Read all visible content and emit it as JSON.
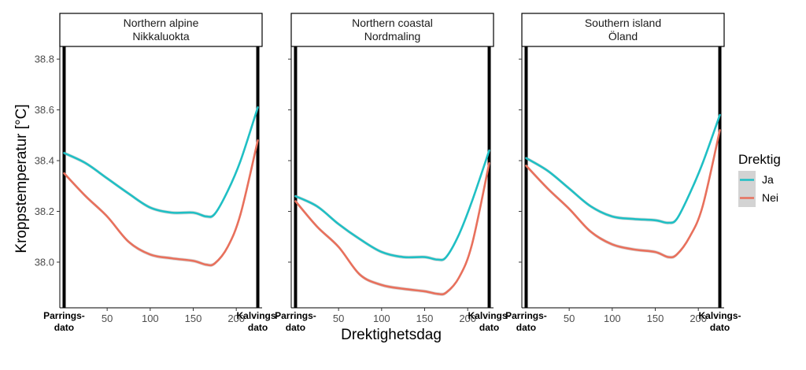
{
  "chart_data": {
    "type": "line",
    "x_axis_title": "Drektighetsdag",
    "y_axis_title": "Kroppstemperatur [°C]",
    "xlim": [
      -5,
      230
    ],
    "ylim": [
      37.82,
      38.85
    ],
    "x_ticks": [
      50,
      100,
      150,
      200
    ],
    "y_ticks": [
      38.0,
      38.2,
      38.4,
      38.6,
      38.8
    ],
    "y_tick_labels": [
      "38.0",
      "38.2",
      "38.4",
      "38.6",
      "38.8"
    ],
    "event_lines": [
      {
        "x": 0,
        "label_line1": "Parrings-",
        "label_line2": "dato"
      },
      {
        "x": 225,
        "label_line1": "Kalvings-",
        "label_line2": "dato"
      }
    ],
    "legend": {
      "title": "Drektig",
      "entries": [
        {
          "name": "Ja",
          "color": "#1fbfc4"
        },
        {
          "name": "Nei",
          "color": "#e8705c"
        }
      ]
    },
    "panels": [
      {
        "title_line1": "Northern alpine",
        "title_line2": "Nikkaluokta",
        "series": [
          {
            "name": "Ja",
            "x": [
              0,
              25,
              50,
              75,
              100,
              125,
              150,
              165,
              175,
              190,
              205,
              225
            ],
            "y": [
              38.43,
              38.39,
              38.33,
              38.27,
              38.215,
              38.195,
              38.195,
              38.18,
              38.19,
              38.28,
              38.4,
              38.61
            ]
          },
          {
            "name": "Nei",
            "x": [
              0,
              25,
              50,
              75,
              100,
              125,
              150,
              165,
              175,
              190,
              205,
              225
            ],
            "y": [
              38.35,
              38.26,
              38.18,
              38.08,
              38.03,
              38.015,
              38.005,
              37.99,
              37.995,
              38.06,
              38.19,
              38.48
            ]
          }
        ]
      },
      {
        "title_line1": "Northern coastal",
        "title_line2": "Nordmaling",
        "series": [
          {
            "name": "Ja",
            "x": [
              0,
              25,
              50,
              75,
              100,
              125,
              150,
              165,
              175,
              190,
              205,
              225
            ],
            "y": [
              38.26,
              38.22,
              38.15,
              38.09,
              38.04,
              38.02,
              38.02,
              38.01,
              38.02,
              38.11,
              38.24,
              38.44
            ]
          },
          {
            "name": "Nei",
            "x": [
              0,
              25,
              50,
              75,
              100,
              125,
              150,
              165,
              175,
              190,
              205,
              225
            ],
            "y": [
              38.24,
              38.14,
              38.06,
              37.95,
              37.91,
              37.895,
              37.885,
              37.875,
              37.88,
              37.94,
              38.07,
              38.39
            ]
          }
        ]
      },
      {
        "title_line1": "Southern island",
        "title_line2": "Öland",
        "series": [
          {
            "name": "Ja",
            "x": [
              0,
              25,
              50,
              75,
              100,
              125,
              150,
              165,
              175,
              190,
              205,
              225
            ],
            "y": [
              38.41,
              38.36,
              38.29,
              38.22,
              38.18,
              38.17,
              38.165,
              38.155,
              38.17,
              38.27,
              38.39,
              38.58
            ]
          },
          {
            "name": "Nei",
            "x": [
              0,
              25,
              50,
              75,
              100,
              125,
              150,
              165,
              175,
              190,
              205,
              225
            ],
            "y": [
              38.38,
              38.29,
              38.21,
              38.12,
              38.07,
              38.05,
              38.04,
              38.02,
              38.03,
              38.1,
              38.22,
              38.52
            ]
          }
        ]
      }
    ]
  }
}
